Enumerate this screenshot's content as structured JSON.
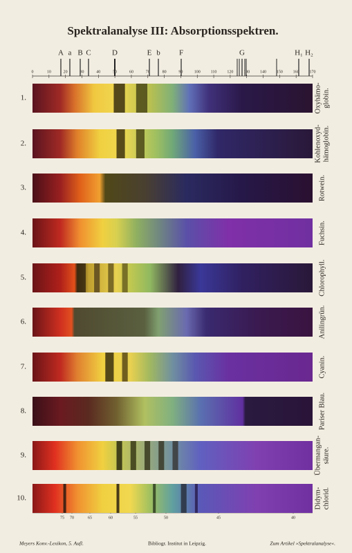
{
  "title": "Spektralanalyse III: Absorptionsspektren.",
  "fraunhofer": [
    "A",
    "a",
    "B",
    "C",
    "D",
    "E",
    "b",
    "F",
    "G",
    "H₁",
    "H₂"
  ],
  "scale_top": [
    0,
    10,
    20,
    30,
    40,
    50,
    60,
    70,
    80,
    90,
    100,
    110,
    120,
    130,
    140,
    150,
    160,
    170
  ],
  "scale_bottom": [
    75,
    70,
    65,
    60,
    55,
    50,
    45,
    40
  ],
  "spectra": [
    {
      "number": "1.",
      "name": [
        "Oxyhämo-",
        "globin."
      ]
    },
    {
      "number": "2.",
      "name": [
        "Kohlenoxyd-",
        "hämoglobin."
      ]
    },
    {
      "number": "3.",
      "name": [
        "Rotwein."
      ]
    },
    {
      "number": "4.",
      "name": [
        "Fuchsin."
      ]
    },
    {
      "number": "5.",
      "name": [
        "Chlorophyll."
      ]
    },
    {
      "number": "6.",
      "name": [
        "Anilingrün."
      ]
    },
    {
      "number": "7.",
      "name": [
        "Cyanin."
      ]
    },
    {
      "number": "8.",
      "name": [
        "Pariser Blau."
      ]
    },
    {
      "number": "9.",
      "name": [
        "Übermangan-",
        "säure."
      ]
    },
    {
      "number": "10.",
      "name": [
        "Didym-",
        "chlorid."
      ]
    }
  ],
  "footer": {
    "left": "Meyers Konv.-Lexikon, 5. Aufl.",
    "center": "Bibliogr. Institut in Leipzig.",
    "right": "Zum Artikel »Spektralanalyse«."
  }
}
